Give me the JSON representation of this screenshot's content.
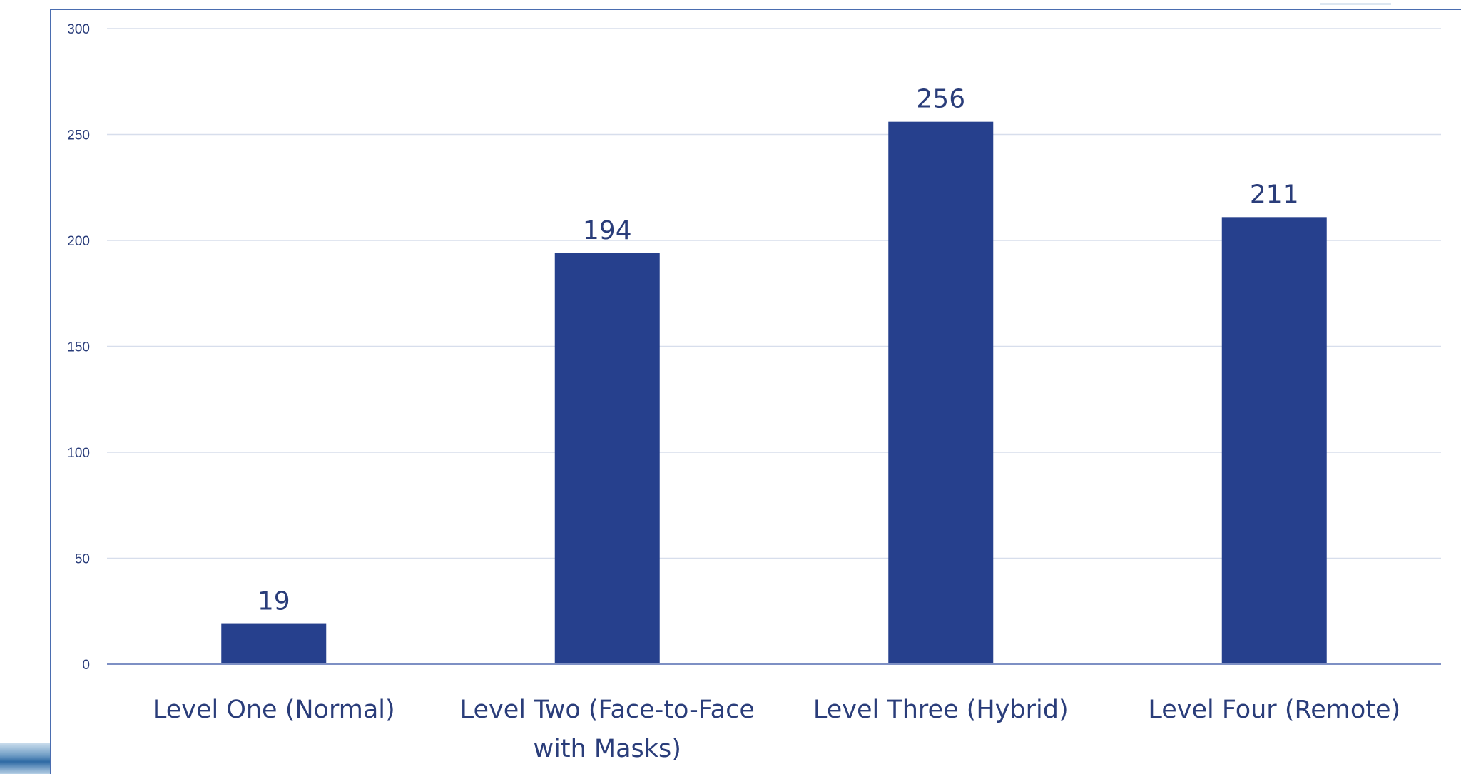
{
  "chart_data": {
    "type": "bar",
    "categories": [
      [
        "Level One (Normal)"
      ],
      [
        "Level Two (Face-to-Face",
        "with Masks)"
      ],
      [
        "Level Three (Hybrid)"
      ],
      [
        "Level Four (Remote)"
      ]
    ],
    "values": [
      19,
      194,
      256,
      211
    ],
    "data_labels": [
      "19",
      "194",
      "256",
      "211"
    ],
    "y_ticks": [
      0,
      50,
      100,
      150,
      200,
      250,
      300
    ],
    "ylim": [
      0,
      300
    ],
    "grid": true,
    "legend": "none",
    "title": "",
    "xlabel": "",
    "ylabel": "",
    "colors": {
      "bar": "#26408d",
      "grid": "#d7deec",
      "axis": "#7e90c4",
      "text": "#2a3d7a"
    }
  }
}
